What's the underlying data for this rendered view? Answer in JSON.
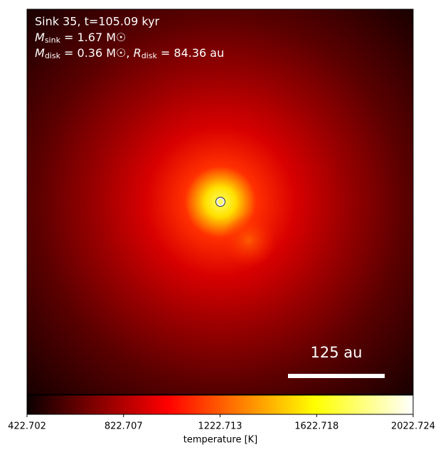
{
  "chart_data": {
    "type": "image",
    "annotations": [
      {
        "text": "Sink 35, t=105.09 kyr"
      },
      {
        "symbol": "M",
        "sub": "sink",
        "text": " = 1.67 M☉"
      },
      {
        "symbol": "M",
        "sub": "disk",
        "text": " = 0.36 M☉, ",
        "symbol2": "R",
        "sub2": "disk",
        "text2": " = 84.36 au"
      }
    ],
    "scalebar": {
      "value": 125,
      "label": "125 au"
    },
    "colormap": "hot",
    "clim": [
      422.702,
      2022.724
    ],
    "cticks": [
      422.702,
      822.707,
      1222.713,
      1622.718,
      2022.724
    ],
    "colorbar_label": "temperature [K]"
  }
}
